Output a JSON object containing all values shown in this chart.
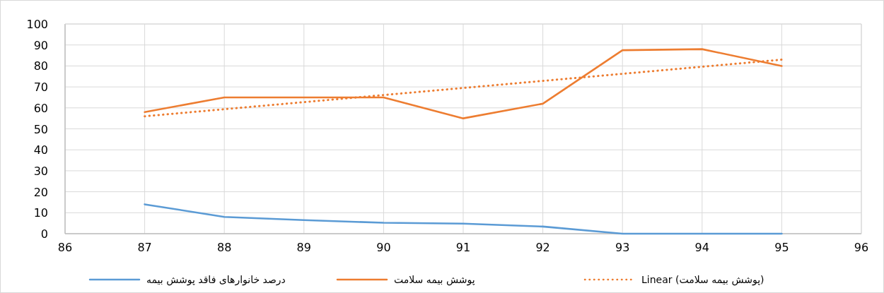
{
  "chart_data": {
    "type": "line",
    "xlim": [
      86,
      96
    ],
    "xticks": [
      86,
      87,
      88,
      89,
      90,
      91,
      92,
      93,
      94,
      95,
      96
    ],
    "ylim": [
      0,
      100
    ],
    "yticks": [
      0,
      10,
      20,
      30,
      40,
      50,
      60,
      70,
      80,
      90,
      100
    ],
    "grid": true,
    "legend": "bottom",
    "marker": "none",
    "series": [
      {
        "name": "درصد خانوارهای فاقد پوشش بیمه",
        "color": "#5b9bd5",
        "x": [
          87,
          88,
          89,
          90,
          91,
          92,
          93,
          94,
          95
        ],
        "values": [
          14,
          8,
          6.5,
          5.2,
          4.8,
          3.4,
          0,
          0,
          0
        ]
      },
      {
        "name": "پوشش بیمه سلامت",
        "color": "#ed7d31",
        "x": [
          87,
          88,
          89,
          90,
          91,
          92,
          93,
          94,
          95
        ],
        "values": [
          58,
          65,
          65,
          65,
          55,
          62,
          87.5,
          88,
          80
        ]
      },
      {
        "name": "Linear (پوشش بیمه سلامت)",
        "color": "#ed7d31",
        "line_style": "dotted",
        "x": [
          87,
          95
        ],
        "values": [
          56,
          83
        ]
      }
    ]
  }
}
